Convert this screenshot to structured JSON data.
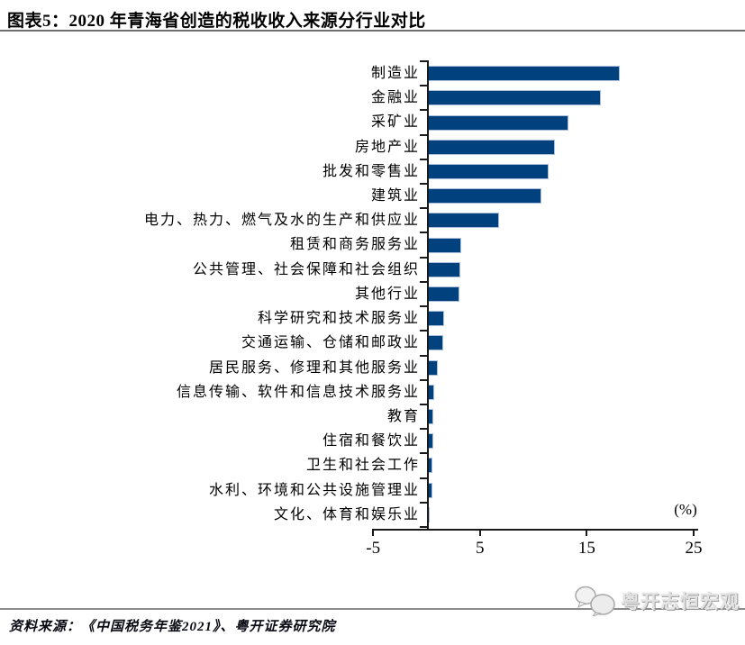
{
  "header": {
    "title": "图表5：2020 年青海省创造的税收收入来源分行业对比"
  },
  "chart_data": {
    "type": "bar",
    "orientation": "horizontal",
    "title": "2020 年青海省创造的税收收入来源分行业对比",
    "unit_label": "(%)",
    "categories": [
      "制造业",
      "金融业",
      "采矿业",
      "房地产业",
      "批发和零售业",
      "建筑业",
      "电力、热力、燃气及水的生产和供应业",
      "租赁和商务服务业",
      "公共管理、社会保障和社会组织",
      "其他行业",
      "科学研究和技术服务业",
      "交通运输、仓储和邮政业",
      "居民服务、修理和其他服务业",
      "信息传输、软件和信息技术服务业",
      "教育",
      "住宿和餐饮业",
      "卫生和社会工作",
      "水利、环境和公共设施管理业",
      "文化、体育和娱乐业"
    ],
    "values": [
      17.8,
      16.1,
      13.0,
      11.8,
      11.2,
      10.5,
      6.5,
      3.0,
      2.9,
      2.8,
      1.4,
      1.3,
      0.8,
      0.5,
      0.4,
      0.4,
      0.3,
      0.3,
      0.05
    ],
    "x_ticks": [
      -5,
      5,
      15,
      25
    ],
    "x_tick_labels": [
      "-5",
      "5",
      "15",
      "25"
    ],
    "xlim": [
      -5,
      25.4
    ],
    "grid": false,
    "legend": "none",
    "bar_color": "#00417E",
    "bar_border_color": "#A9BFDC",
    "axis_color": "#1a1a1a"
  },
  "footer": {
    "source": "资料来源：《中国税务年鉴2021》、粤开证券研究院",
    "logo_text": "粤开志恒宏观"
  }
}
